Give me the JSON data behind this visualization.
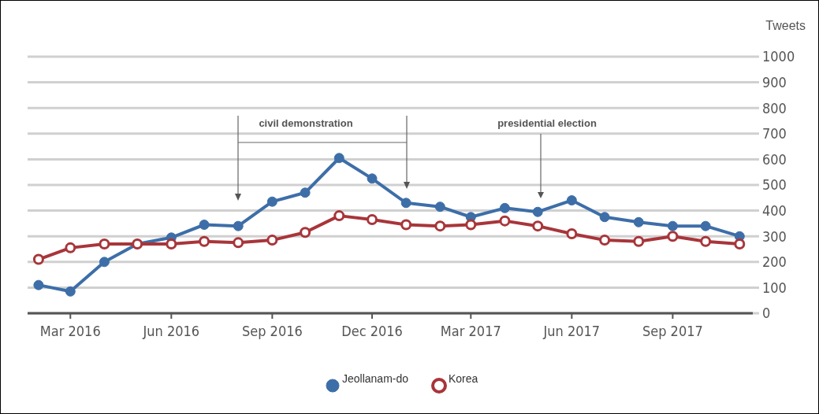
{
  "chart_data": {
    "type": "line",
    "ylabel": "Tweets",
    "x": [
      "2016-02",
      "2016-03",
      "2016-04",
      "2016-05",
      "2016-06",
      "2016-07",
      "2016-08",
      "2016-09",
      "2016-10",
      "2016-11",
      "2016-12",
      "2017-01",
      "2017-02",
      "2017-03",
      "2017-04",
      "2017-05",
      "2017-06",
      "2017-07",
      "2017-08",
      "2017-09",
      "2017-10",
      "2017-11"
    ],
    "series": [
      {
        "name": "Jeollanam-do",
        "color": "#3d6ea8",
        "values": [
          110,
          85,
          200,
          270,
          295,
          345,
          340,
          435,
          470,
          605,
          525,
          430,
          415,
          375,
          410,
          395,
          440,
          375,
          355,
          340,
          340,
          300
        ]
      },
      {
        "name": "Korea",
        "color": "#a8353a",
        "values": [
          210,
          255,
          270,
          270,
          270,
          280,
          275,
          285,
          315,
          380,
          365,
          345,
          340,
          345,
          360,
          340,
          310,
          285,
          280,
          300,
          280,
          270
        ]
      }
    ],
    "xlim": [
      "2016-01-22",
      "2017-11-13"
    ],
    "xticks": [
      {
        "value": "2016-03",
        "label": "Mar 2016"
      },
      {
        "value": "2016-06",
        "label": "Jun 2016"
      },
      {
        "value": "2016-09",
        "label": "Sep 2016"
      },
      {
        "value": "2016-12",
        "label": "Dec 2016"
      },
      {
        "value": "2017-03",
        "label": "Mar 2017"
      },
      {
        "value": "2017-06",
        "label": "Jun 2017"
      },
      {
        "value": "2017-09",
        "label": "Sep 2017"
      }
    ],
    "ylim": [
      0,
      1000
    ],
    "yticks": [
      0,
      100,
      200,
      300,
      400,
      500,
      600,
      700,
      800,
      900,
      1000
    ],
    "grid": "y",
    "legend": "bottom",
    "marker": "circle",
    "line_style": "solid",
    "annotations": [
      "civil demonstration",
      "presidential election"
    ]
  }
}
